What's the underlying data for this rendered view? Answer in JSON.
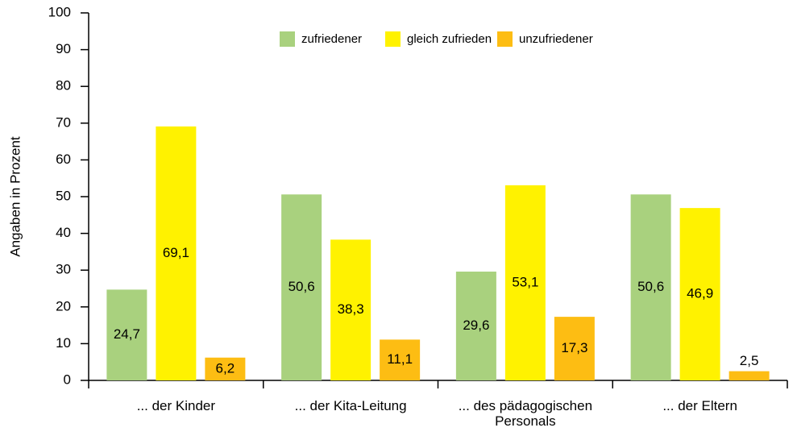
{
  "chart_data": {
    "type": "bar",
    "y_label": "Angaben in Prozent",
    "categories": [
      "... der Kinder",
      "... der Kita-Leitung",
      "... des pädagogischen Personals",
      "... der Eltern"
    ],
    "series": [
      {
        "name": "zufriedener",
        "color": "#a9d17e",
        "values": [
          24.7,
          50.6,
          29.6,
          50.6
        ],
        "value_labels": [
          "24,7",
          "50,6",
          "29,6",
          "50,6"
        ]
      },
      {
        "name": "gleich zufrieden",
        "color": "#fff200",
        "values": [
          69.1,
          38.3,
          53.1,
          46.9
        ],
        "value_labels": [
          "69,1",
          "38,3",
          "53,1",
          "46,9"
        ]
      },
      {
        "name": "unzufriedener",
        "color": "#fdbd13",
        "values": [
          6.2,
          11.1,
          17.3,
          2.5
        ],
        "value_labels": [
          "6,2",
          "11,1",
          "17,3",
          "2,5"
        ]
      }
    ],
    "ylim": [
      0,
      100
    ],
    "yticks": [
      0,
      10,
      20,
      30,
      40,
      50,
      60,
      70,
      80,
      90,
      100
    ],
    "legend": "top"
  }
}
